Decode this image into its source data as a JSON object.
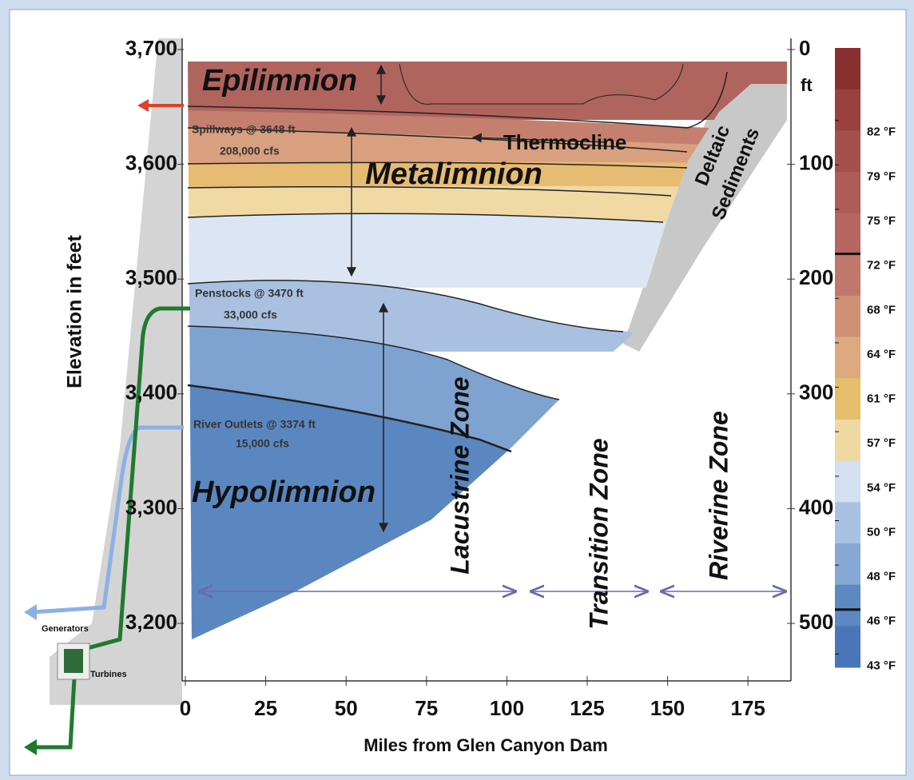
{
  "axes": {
    "left": {
      "label": "Elevation in feet",
      "ticks": [
        "3,700",
        "3,600",
        "3,500",
        "3,400",
        "3,300",
        "3,200"
      ]
    },
    "right": {
      "unit": "ft",
      "ticks": [
        "0",
        "100",
        "200",
        "300",
        "400",
        "500"
      ]
    },
    "bottom": {
      "label": "Miles from Glen Canyon Dam",
      "ticks": [
        "0",
        "25",
        "50",
        "75",
        "100",
        "125",
        "150",
        "175"
      ]
    }
  },
  "layers": [
    "Epilimnion",
    "Metalimnion",
    "Hypolimnion"
  ],
  "thermocline": "Thermocline",
  "outlets": [
    {
      "name": "Spillways @ 3648 ft",
      "flow": "208,000 cfs"
    },
    {
      "name": "Penstocks @ 3470 ft",
      "flow": "33,000 cfs"
    },
    {
      "name": "River Outlets @ 3374 ft",
      "flow": "15,000 cfs"
    }
  ],
  "sediments": [
    "Deltaic",
    "Sediments"
  ],
  "zones": [
    "Lacustrine Zone",
    "Transition Zone",
    "Riverine Zone"
  ],
  "plant": [
    "Generators",
    "Turbines"
  ],
  "legend": [
    "82 °F",
    "79 °F",
    "75 °F",
    "72 °F",
    "68 °F",
    "64 °F",
    "61 °F",
    "57 °F",
    "54 °F",
    "50 °F",
    "48 °F",
    "46 °F",
    "43 °F"
  ]
}
